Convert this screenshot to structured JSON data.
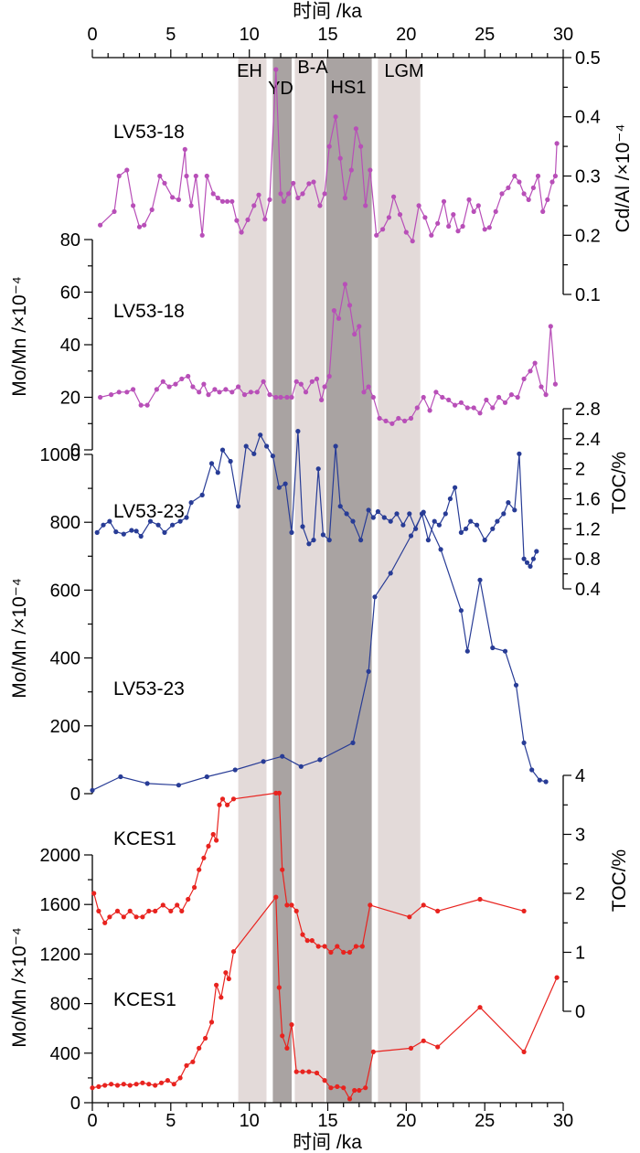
{
  "chart_data": {
    "type": "line",
    "x_axis": {
      "label": "时间 /ka",
      "range": [
        0,
        30
      ],
      "ticks": [
        "0",
        "5",
        "10",
        "15",
        "20",
        "25",
        "30"
      ]
    },
    "periods": [
      {
        "label": "EH",
        "range": [
          9.3,
          11.1
        ],
        "shade": "light"
      },
      {
        "label": "YD",
        "range": [
          11.5,
          12.7
        ],
        "shade": "dark"
      },
      {
        "label": "B-A",
        "range": [
          12.9,
          14.8
        ],
        "shade": "light"
      },
      {
        "label": "HS1",
        "range": [
          14.9,
          17.8
        ],
        "shade": "dark"
      },
      {
        "label": "LGM",
        "range": [
          18.2,
          20.9
        ],
        "shade": "light"
      }
    ],
    "colors": {
      "lv53_18": "#b84fb8",
      "lv53_23": "#283c96",
      "kces1": "#e8231f",
      "shade_light": "#e3dad9",
      "shade_dark": "#a9a3a2"
    },
    "axes": [
      {
        "id": "cd_al",
        "label": "Cd/Al /×10⁻⁴",
        "range": [
          0.1,
          0.5
        ],
        "ticks": [
          "0.1",
          "0.2",
          "0.3",
          "0.4",
          "0.5"
        ]
      },
      {
        "id": "momn_a",
        "label": "Mo/Mn /×10⁻⁴",
        "range": [
          0,
          80
        ],
        "ticks": [
          "0",
          "20",
          "40",
          "60",
          "80"
        ]
      },
      {
        "id": "toc_a",
        "label": "TOC/%",
        "range": [
          0.4,
          2.8
        ],
        "ticks": [
          "0.4",
          "0.8",
          "1.2",
          "1.6",
          "2",
          "2.4",
          "2.8"
        ]
      },
      {
        "id": "momn_b",
        "label": "Mo/Mn /×10⁻⁴",
        "range": [
          0,
          1000
        ],
        "ticks": [
          "0",
          "200",
          "400",
          "600",
          "800",
          "1000"
        ]
      },
      {
        "id": "toc_b",
        "label": "TOC/%",
        "range": [
          0,
          4
        ],
        "ticks": [
          "0",
          "1",
          "2",
          "3",
          "4"
        ]
      },
      {
        "id": "momn_c",
        "label": "Mo/Mn /×10⁻⁴",
        "range": [
          0,
          2000
        ],
        "ticks": [
          "0",
          "400",
          "800",
          "1200",
          "1600",
          "2000"
        ]
      }
    ],
    "series": [
      {
        "id": "s_cdal",
        "core": "LV53-18",
        "axis": "cd_al",
        "color": "#b84fb8",
        "x": [
          0.5,
          1.4,
          1.7,
          2.2,
          2.6,
          3.0,
          3.3,
          3.8,
          4.3,
          4.6,
          5.1,
          5.5,
          5.9,
          6.0,
          6.3,
          6.6,
          7.0,
          7.3,
          7.7,
          8.0,
          8.3,
          8.6,
          8.9,
          9.2,
          9.5,
          9.9,
          10.3,
          10.6,
          11.0,
          11.3,
          11.7,
          12.0,
          12.2,
          12.5,
          12.8,
          13.1,
          13.4,
          13.8,
          14.1,
          14.5,
          14.8,
          15.1,
          15.5,
          15.8,
          16.1,
          16.5,
          16.8,
          17.1,
          17.4,
          17.7,
          18.1,
          18.5,
          18.9,
          19.2,
          19.6,
          20.0,
          20.4,
          20.8,
          21.2,
          21.6,
          22.0,
          22.4,
          22.7,
          23.0,
          23.3,
          23.6,
          24.0,
          24.3,
          24.6,
          25.0,
          25.3,
          25.7,
          26.1,
          26.5,
          26.9,
          27.2,
          27.5,
          27.8,
          28.1,
          28.4,
          28.7,
          29.0,
          29.3,
          29.5,
          29.6
        ],
        "y": [
          0.217,
          0.24,
          0.3,
          0.31,
          0.25,
          0.214,
          0.217,
          0.243,
          0.3,
          0.288,
          0.264,
          0.26,
          0.345,
          0.3,
          0.25,
          0.3,
          0.2,
          0.3,
          0.27,
          0.263,
          0.257,
          0.257,
          0.257,
          0.225,
          0.205,
          0.226,
          0.25,
          0.268,
          0.227,
          0.26,
          0.48,
          0.27,
          0.257,
          0.27,
          0.288,
          0.263,
          0.27,
          0.287,
          0.29,
          0.25,
          0.27,
          0.35,
          0.4,
          0.33,
          0.263,
          0.31,
          0.38,
          0.35,
          0.25,
          0.31,
          0.2,
          0.21,
          0.23,
          0.265,
          0.235,
          0.205,
          0.19,
          0.25,
          0.23,
          0.2,
          0.22,
          0.257,
          0.215,
          0.235,
          0.207,
          0.215,
          0.26,
          0.24,
          0.25,
          0.21,
          0.213,
          0.24,
          0.27,
          0.28,
          0.3,
          0.29,
          0.27,
          0.26,
          0.28,
          0.3,
          0.24,
          0.26,
          0.29,
          0.3,
          0.355
        ]
      },
      {
        "id": "s_momn_a",
        "core": "LV53-18",
        "axis": "momn_a",
        "color": "#b84fb8",
        "x": [
          0.5,
          1.2,
          1.7,
          2.2,
          2.6,
          3.1,
          3.5,
          4.1,
          4.5,
          4.9,
          5.3,
          5.7,
          6.1,
          6.4,
          6.8,
          7.1,
          7.4,
          7.8,
          8.1,
          8.5,
          8.9,
          9.3,
          9.7,
          10.1,
          10.5,
          10.9,
          11.3,
          11.7,
          12.0,
          12.4,
          12.7,
          13.0,
          13.3,
          13.6,
          14.0,
          14.3,
          14.6,
          14.8,
          15.1,
          15.4,
          15.7,
          16.1,
          16.4,
          16.7,
          17.0,
          17.3,
          17.6,
          17.9,
          18.3,
          18.7,
          19.1,
          19.5,
          19.9,
          20.3,
          20.7,
          21.1,
          21.5,
          21.9,
          22.3,
          22.7,
          23.1,
          23.5,
          23.9,
          24.3,
          24.7,
          25.1,
          25.5,
          25.9,
          26.3,
          26.7,
          27.1,
          27.5,
          27.9,
          28.2,
          28.6,
          28.9,
          29.2,
          29.5
        ],
        "y": [
          20,
          21,
          22,
          22,
          23,
          17,
          17,
          23,
          26,
          24,
          25,
          27,
          28,
          24,
          22,
          25,
          21,
          23,
          22,
          23,
          22,
          24,
          21,
          22,
          22,
          26,
          21,
          20,
          20,
          20,
          20,
          26,
          25,
          22,
          26,
          27,
          19,
          24,
          28,
          53,
          50,
          63,
          55,
          44,
          47,
          22,
          24,
          20,
          12,
          11,
          10,
          12,
          11,
          12,
          16,
          20,
          15,
          22,
          20,
          19,
          17,
          18,
          16,
          16,
          14,
          19,
          16,
          20,
          18,
          21,
          20,
          27,
          30,
          33,
          24,
          21,
          47,
          25
        ]
      },
      {
        "id": "s_toc_a",
        "core": "LV53-23",
        "axis": "toc_a",
        "color": "#283c96",
        "x": [
          0.3,
          0.7,
          1.1,
          1.5,
          2.0,
          2.5,
          2.8,
          3.1,
          3.7,
          4.2,
          4.6,
          5.1,
          5.6,
          6.0,
          6.3,
          7.0,
          7.6,
          8.0,
          8.3,
          8.8,
          9.3,
          9.8,
          10.3,
          10.7,
          11.1,
          11.5,
          11.9,
          12.3,
          12.7,
          13.1,
          13.4,
          13.8,
          14.1,
          14.4,
          14.7,
          15.1,
          15.5,
          15.8,
          16.2,
          16.6,
          17.1,
          17.6,
          17.9,
          18.2,
          18.6,
          19.0,
          19.4,
          19.8,
          20.2,
          20.6,
          21.0,
          21.4,
          21.8,
          22.1,
          22.5,
          22.8,
          23.1,
          23.5,
          23.8,
          24.1,
          24.5,
          25.0,
          25.5,
          25.8,
          26.2,
          26.5,
          26.9,
          27.2,
          27.5,
          27.7,
          27.9,
          28.1,
          28.3
        ],
        "y": [
          1.15,
          1.25,
          1.3,
          1.16,
          1.13,
          1.18,
          1.17,
          1.1,
          1.3,
          1.25,
          1.15,
          1.25,
          1.3,
          1.35,
          1.55,
          1.65,
          2.07,
          1.95,
          2.25,
          2.1,
          1.5,
          2.3,
          2.2,
          2.45,
          2.3,
          2.17,
          1.75,
          1.8,
          1.15,
          2.5,
          1.23,
          1.0,
          1.05,
          2.0,
          1.12,
          1.05,
          2.3,
          1.5,
          1.4,
          1.3,
          1.05,
          1.45,
          1.35,
          1.43,
          1.35,
          1.3,
          1.4,
          1.25,
          1.4,
          1.2,
          1.4,
          1.05,
          1.3,
          1.25,
          1.4,
          1.6,
          1.75,
          1.15,
          1.2,
          1.3,
          1.25,
          1.05,
          1.2,
          1.3,
          1.4,
          1.55,
          1.45,
          2.2,
          0.8,
          0.75,
          0.7,
          0.8,
          0.9
        ]
      },
      {
        "id": "s_momn_b",
        "core": "LV53-23",
        "axis": "momn_b",
        "color": "#283c96",
        "x": [
          0,
          1.8,
          3.5,
          5.5,
          7.3,
          9.1,
          10.9,
          12.1,
          13.3,
          14.5,
          16.6,
          17.6,
          18.0,
          19.0,
          20.3,
          21.1,
          22.2,
          23.5,
          23.9,
          24.7,
          25.5,
          26.3,
          27.0,
          27.5,
          28.0,
          28.5,
          28.9
        ],
        "y": [
          10,
          50,
          30,
          25,
          50,
          70,
          95,
          110,
          80,
          100,
          150,
          360,
          580,
          650,
          760,
          830,
          720,
          540,
          420,
          630,
          430,
          420,
          320,
          150,
          70,
          40,
          35
        ]
      },
      {
        "id": "s_toc_b",
        "core": "KCES1",
        "axis": "toc_b",
        "color": "#e8231f",
        "x": [
          0.1,
          0.4,
          0.8,
          1.1,
          1.6,
          2.0,
          2.4,
          2.8,
          3.2,
          3.6,
          4.0,
          4.5,
          5.0,
          5.4,
          5.7,
          6.1,
          6.5,
          6.8,
          7.1,
          7.4,
          7.7,
          7.9,
          8.1,
          8.3,
          8.6,
          9.0,
          11.7,
          11.9,
          12.1,
          12.4,
          12.7,
          13.0,
          13.4,
          13.7,
          14.0,
          14.4,
          14.8,
          15.2,
          15.6,
          16.0,
          16.4,
          16.8,
          17.2,
          17.7,
          20.2,
          21.1,
          22.0,
          24.7,
          27.5
        ],
        "y": [
          2.0,
          1.7,
          1.5,
          1.6,
          1.7,
          1.6,
          1.7,
          1.6,
          1.6,
          1.7,
          1.7,
          1.8,
          1.7,
          1.8,
          1.7,
          1.9,
          2.1,
          2.4,
          2.6,
          2.8,
          3.0,
          2.9,
          3.5,
          3.6,
          3.5,
          3.6,
          3.7,
          3.7,
          2.4,
          1.8,
          1.8,
          1.7,
          1.3,
          1.2,
          1.2,
          1.1,
          1.1,
          1.0,
          1.1,
          1.0,
          1.0,
          1.1,
          1.1,
          1.8,
          1.6,
          1.8,
          1.7,
          1.9,
          1.7
        ]
      },
      {
        "id": "s_momn_c",
        "core": "KCES1",
        "axis": "momn_c",
        "color": "#e8231f",
        "x": [
          0,
          0.4,
          0.8,
          1.2,
          1.6,
          2.0,
          2.4,
          2.8,
          3.2,
          3.6,
          4.0,
          4.4,
          4.8,
          5.2,
          5.6,
          6.0,
          6.4,
          6.8,
          7.2,
          7.6,
          7.9,
          8.2,
          8.5,
          8.7,
          9.0,
          11.7,
          11.9,
          12.1,
          12.4,
          12.7,
          13.0,
          13.4,
          13.8,
          14.3,
          14.8,
          15.2,
          15.6,
          16.0,
          16.4,
          16.7,
          17.0,
          17.4,
          17.9,
          20.3,
          21.1,
          22.0,
          24.7,
          27.5,
          29.6
        ],
        "y": [
          120,
          130,
          140,
          150,
          140,
          150,
          140,
          150,
          160,
          150,
          140,
          160,
          180,
          150,
          200,
          300,
          330,
          440,
          520,
          650,
          950,
          850,
          1050,
          1000,
          1220,
          1660,
          930,
          540,
          440,
          630,
          250,
          250,
          250,
          240,
          180,
          120,
          130,
          120,
          30,
          100,
          100,
          120,
          410,
          440,
          500,
          450,
          770,
          410,
          1010
        ]
      }
    ],
    "core_labels": [
      {
        "text": "LV53-18",
        "axis": "cd_al"
      },
      {
        "text": "LV53-18",
        "axis": "momn_a"
      },
      {
        "text": "LV53-23",
        "axis": "toc_a"
      },
      {
        "text": "LV53-23",
        "axis": "momn_b"
      },
      {
        "text": "KCES1",
        "axis": "toc_b"
      },
      {
        "text": "KCES1",
        "axis": "momn_c"
      }
    ]
  }
}
